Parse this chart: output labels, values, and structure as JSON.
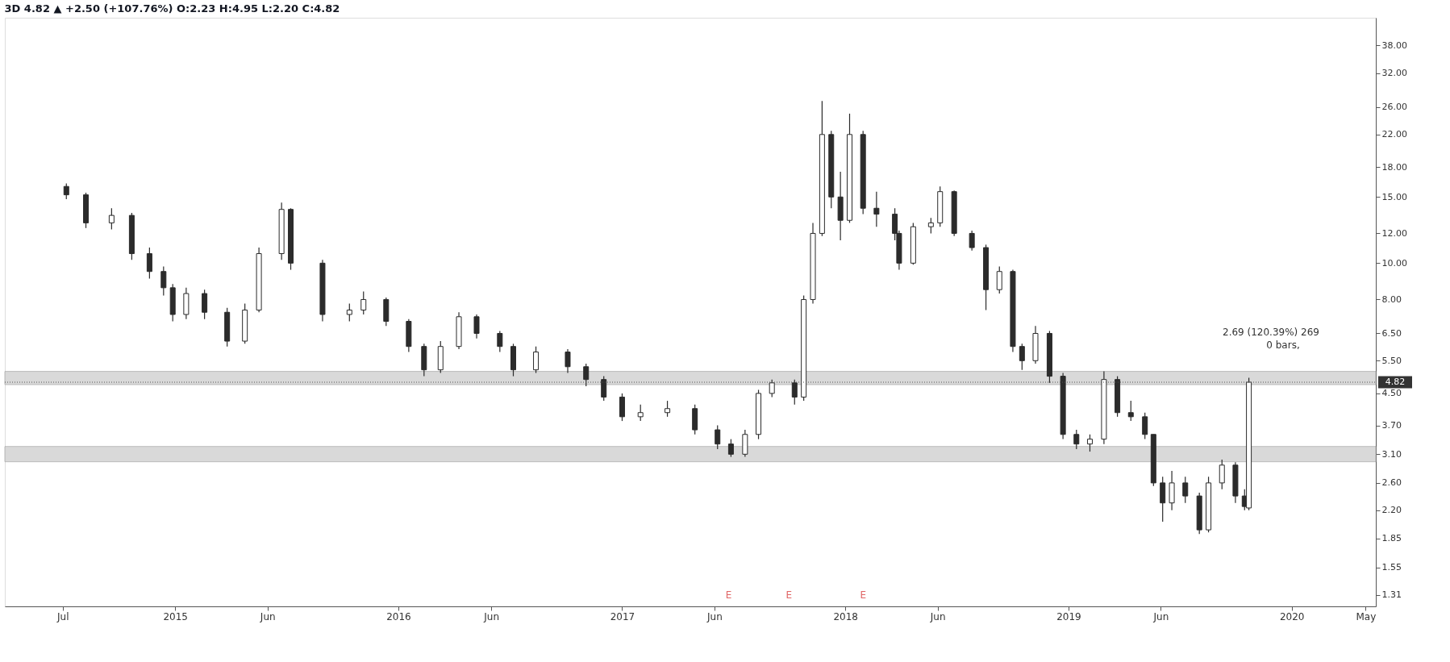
{
  "chart_data": {
    "type": "candlestick",
    "title": "3D 4.82 ▲ +2.50 (+107.76%) O:2.23 H:4.95 L:2.20 C:4.82",
    "x": [
      "2014-07-07",
      "2014-08-08",
      "2014-09-19",
      "2014-10-22",
      "2014-11-20",
      "2014-12-13",
      "2014-12-28",
      "2015-01-19",
      "2015-02-18",
      "2015-03-27",
      "2015-04-25",
      "2015-05-18",
      "2015-06-24",
      "2015-07-09",
      "2015-08-30",
      "2015-10-13",
      "2015-11-05",
      "2015-12-12",
      "2016-01-18",
      "2016-02-12",
      "2016-03-10",
      "2016-04-09",
      "2016-05-08",
      "2016-06-15",
      "2016-07-07",
      "2016-08-13",
      "2016-10-04",
      "2016-11-03",
      "2016-12-02",
      "2017-01-01",
      "2017-01-31",
      "2017-03-16",
      "2017-04-30",
      "2017-06-06",
      "2017-06-28",
      "2017-07-21",
      "2017-08-12",
      "2017-09-03",
      "2017-10-10",
      "2017-10-25",
      "2017-11-09",
      "2017-11-24",
      "2017-12-09",
      "2017-12-24",
      "2018-01-08",
      "2018-01-30",
      "2018-02-21",
      "2018-03-23",
      "2018-03-30",
      "2018-04-22",
      "2018-05-21",
      "2018-06-05",
      "2018-06-28",
      "2018-07-27",
      "2018-08-19",
      "2018-09-10",
      "2018-10-02",
      "2018-10-17",
      "2018-11-08",
      "2018-12-01",
      "2018-12-23",
      "2019-01-14",
      "2019-02-05",
      "2019-02-28",
      "2019-03-22",
      "2019-04-13",
      "2019-05-06",
      "2019-05-20",
      "2019-06-04",
      "2019-06-19",
      "2019-07-11",
      "2019-08-03",
      "2019-08-18",
      "2019-09-09",
      "2019-10-01",
      "2019-10-16",
      "2019-10-23"
    ],
    "ohlc": [
      [
        16.0,
        16.3,
        14.8,
        15.2
      ],
      [
        15.2,
        15.4,
        12.4,
        12.8
      ],
      [
        12.8,
        14.0,
        12.3,
        13.4
      ],
      [
        13.4,
        13.6,
        10.2,
        10.6
      ],
      [
        10.6,
        11.0,
        9.1,
        9.5
      ],
      [
        9.5,
        9.8,
        8.2,
        8.6
      ],
      [
        8.6,
        8.8,
        7.0,
        7.3
      ],
      [
        7.3,
        8.6,
        7.1,
        8.3
      ],
      [
        8.3,
        8.5,
        7.1,
        7.4
      ],
      [
        7.4,
        7.6,
        6.0,
        6.2
      ],
      [
        6.2,
        7.8,
        6.1,
        7.5
      ],
      [
        7.5,
        11.0,
        7.4,
        10.6
      ],
      [
        10.6,
        14.5,
        10.2,
        13.9
      ],
      [
        13.9,
        14.0,
        9.6,
        10.0
      ],
      [
        10.0,
        10.2,
        7.0,
        7.3
      ],
      [
        7.3,
        7.8,
        7.0,
        7.5
      ],
      [
        7.5,
        8.4,
        7.3,
        8.0
      ],
      [
        8.0,
        8.1,
        6.8,
        7.0
      ],
      [
        7.0,
        7.1,
        5.8,
        6.0
      ],
      [
        6.0,
        6.1,
        5.0,
        5.2
      ],
      [
        5.2,
        6.2,
        5.1,
        6.0
      ],
      [
        6.0,
        7.4,
        5.9,
        7.2
      ],
      [
        7.2,
        7.3,
        6.3,
        6.5
      ],
      [
        6.5,
        6.6,
        5.8,
        6.0
      ],
      [
        6.0,
        6.1,
        5.0,
        5.2
      ],
      [
        5.2,
        6.0,
        5.1,
        5.8
      ],
      [
        5.8,
        5.9,
        5.1,
        5.3
      ],
      [
        5.3,
        5.4,
        4.7,
        4.9
      ],
      [
        4.9,
        5.0,
        4.3,
        4.4
      ],
      [
        4.4,
        4.5,
        3.8,
        3.9
      ],
      [
        3.9,
        4.2,
        3.8,
        4.0
      ],
      [
        4.0,
        4.3,
        3.9,
        4.1
      ],
      [
        4.1,
        4.2,
        3.5,
        3.6
      ],
      [
        3.6,
        3.7,
        3.2,
        3.3
      ],
      [
        3.3,
        3.4,
        3.05,
        3.1
      ],
      [
        3.1,
        3.6,
        3.05,
        3.5
      ],
      [
        3.5,
        4.6,
        3.4,
        4.5
      ],
      [
        4.5,
        4.9,
        4.4,
        4.8
      ],
      [
        4.8,
        4.9,
        4.2,
        4.4
      ],
      [
        4.4,
        8.2,
        4.3,
        8.0
      ],
      [
        8.0,
        12.8,
        7.8,
        12.0
      ],
      [
        12.0,
        27.0,
        11.8,
        22.0
      ],
      [
        22.0,
        22.5,
        14.0,
        15.0
      ],
      [
        15.0,
        17.5,
        11.5,
        13.0
      ],
      [
        13.0,
        25.0,
        12.8,
        22.0
      ],
      [
        22.0,
        22.5,
        13.5,
        14.0
      ],
      [
        14.0,
        15.5,
        12.5,
        13.5
      ],
      [
        13.5,
        14.0,
        11.5,
        12.0
      ],
      [
        12.0,
        12.2,
        9.6,
        10.0
      ],
      [
        10.0,
        12.8,
        9.9,
        12.5
      ],
      [
        12.5,
        13.2,
        12.0,
        12.8
      ],
      [
        12.8,
        16.0,
        12.5,
        15.5
      ],
      [
        15.5,
        15.6,
        11.8,
        12.0
      ],
      [
        12.0,
        12.2,
        10.8,
        11.0
      ],
      [
        11.0,
        11.2,
        7.5,
        8.5
      ],
      [
        8.5,
        9.8,
        8.3,
        9.5
      ],
      [
        9.5,
        9.6,
        5.8,
        6.0
      ],
      [
        6.0,
        6.1,
        5.2,
        5.5
      ],
      [
        5.5,
        6.8,
        5.4,
        6.5
      ],
      [
        6.5,
        6.6,
        4.8,
        5.0
      ],
      [
        5.0,
        5.1,
        3.4,
        3.5
      ],
      [
        3.5,
        3.6,
        3.2,
        3.3
      ],
      [
        3.3,
        3.5,
        3.15,
        3.4
      ],
      [
        3.4,
        5.15,
        3.3,
        4.9
      ],
      [
        4.9,
        5.0,
        3.9,
        4.0
      ],
      [
        4.0,
        4.3,
        3.8,
        3.9
      ],
      [
        3.9,
        4.0,
        3.4,
        3.5
      ],
      [
        3.5,
        3.5,
        2.55,
        2.6
      ],
      [
        2.6,
        2.7,
        2.05,
        2.3
      ],
      [
        2.3,
        2.8,
        2.2,
        2.6
      ],
      [
        2.6,
        2.7,
        2.3,
        2.4
      ],
      [
        2.4,
        2.45,
        1.9,
        1.95
      ],
      [
        1.95,
        2.7,
        1.92,
        2.6
      ],
      [
        2.6,
        3.0,
        2.5,
        2.9
      ],
      [
        2.9,
        2.95,
        2.3,
        2.4
      ],
      [
        2.4,
        2.5,
        2.2,
        2.25
      ],
      [
        2.23,
        4.95,
        2.2,
        4.82
      ]
    ],
    "log": true,
    "grid": false,
    "xlim": [
      "2014-04-04",
      "2020-05-11"
    ],
    "xticks": [
      {
        "value": "2014-07-01",
        "label": "Jul"
      },
      {
        "value": "2015-01-01",
        "label": "2015"
      },
      {
        "value": "2015-06-01",
        "label": "Jun"
      },
      {
        "value": "2016-01-01",
        "label": "2016"
      },
      {
        "value": "2016-06-01",
        "label": "Jun"
      },
      {
        "value": "2017-01-01",
        "label": "2017"
      },
      {
        "value": "2017-06-01",
        "label": "Jun"
      },
      {
        "value": "2018-01-01",
        "label": "2018"
      },
      {
        "value": "2018-06-01",
        "label": "Jun"
      },
      {
        "value": "2019-01-01",
        "label": "2019"
      },
      {
        "value": "2019-06-01",
        "label": "Jun"
      },
      {
        "value": "2020-01-01",
        "label": "2020"
      },
      {
        "value": "2020-05-01",
        "label": "May"
      }
    ],
    "ylim": [
      1.22,
      45
    ],
    "yticks": [
      {
        "value": 1.31,
        "label": "1.31"
      },
      {
        "value": 1.55,
        "label": "1.55"
      },
      {
        "value": 1.85,
        "label": "1.85"
      },
      {
        "value": 2.2,
        "label": "2.20"
      },
      {
        "value": 2.6,
        "label": "2.60"
      },
      {
        "value": 3.1,
        "label": "3.10"
      },
      {
        "value": 3.7,
        "label": "3.70"
      },
      {
        "value": 4.5,
        "label": "4.50"
      },
      {
        "value": 5.5,
        "label": "5.50"
      },
      {
        "value": 6.5,
        "label": "6.50"
      },
      {
        "value": 8,
        "label": "8.00"
      },
      {
        "value": 10,
        "label": "10.00"
      },
      {
        "value": 12,
        "label": "12.00"
      },
      {
        "value": 15,
        "label": "15.00"
      },
      {
        "value": 18,
        "label": "18.00"
      },
      {
        "value": 22,
        "label": "22.00"
      },
      {
        "value": 26,
        "label": "26.00"
      },
      {
        "value": 32,
        "label": "32.00"
      },
      {
        "value": 38,
        "label": "38.00"
      }
    ],
    "ref_lines": [
      {
        "axis": "y",
        "value": 4.82,
        "label": "4.82",
        "line_style": "dotted",
        "color": "#555555"
      }
    ],
    "bands": [
      {
        "axis": "y",
        "from": 4.75,
        "to": 5.15,
        "label": null,
        "color": "#d0d0d0"
      },
      {
        "axis": "y",
        "from": 2.96,
        "to": 3.25,
        "label": null,
        "color": "#d0d0d0"
      }
    ],
    "annotations": [
      "2.69 (120.39%) 269",
      "0 bars,",
      "E",
      "E",
      "E"
    ]
  }
}
